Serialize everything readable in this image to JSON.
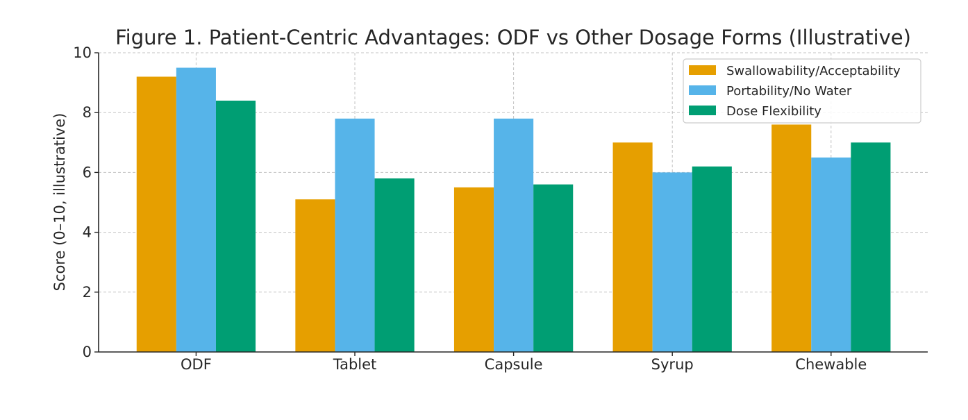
{
  "chart_data": {
    "type": "bar",
    "title": "Figure 1. Patient-Centric Advantages: ODF vs Other Dosage Forms (Illustrative)",
    "xlabel": "",
    "ylabel": "Score (0–10, illustrative)",
    "ylim": [
      0,
      10
    ],
    "yticks": [
      0,
      2,
      4,
      6,
      8,
      10
    ],
    "grid": true,
    "legend_position": "top-right",
    "categories": [
      "ODF",
      "Tablet",
      "Capsule",
      "Syrup",
      "Chewable"
    ],
    "series": [
      {
        "name": "Swallowability/Acceptability",
        "color": "#E69F00",
        "values": [
          9.2,
          5.1,
          5.5,
          7.0,
          7.6
        ]
      },
      {
        "name": "Portability/No Water",
        "color": "#56B4E9",
        "values": [
          9.5,
          7.8,
          7.8,
          6.0,
          6.5
        ]
      },
      {
        "name": "Dose Flexibility",
        "color": "#009E73",
        "values": [
          8.4,
          5.8,
          5.6,
          6.2,
          7.0
        ]
      }
    ]
  }
}
